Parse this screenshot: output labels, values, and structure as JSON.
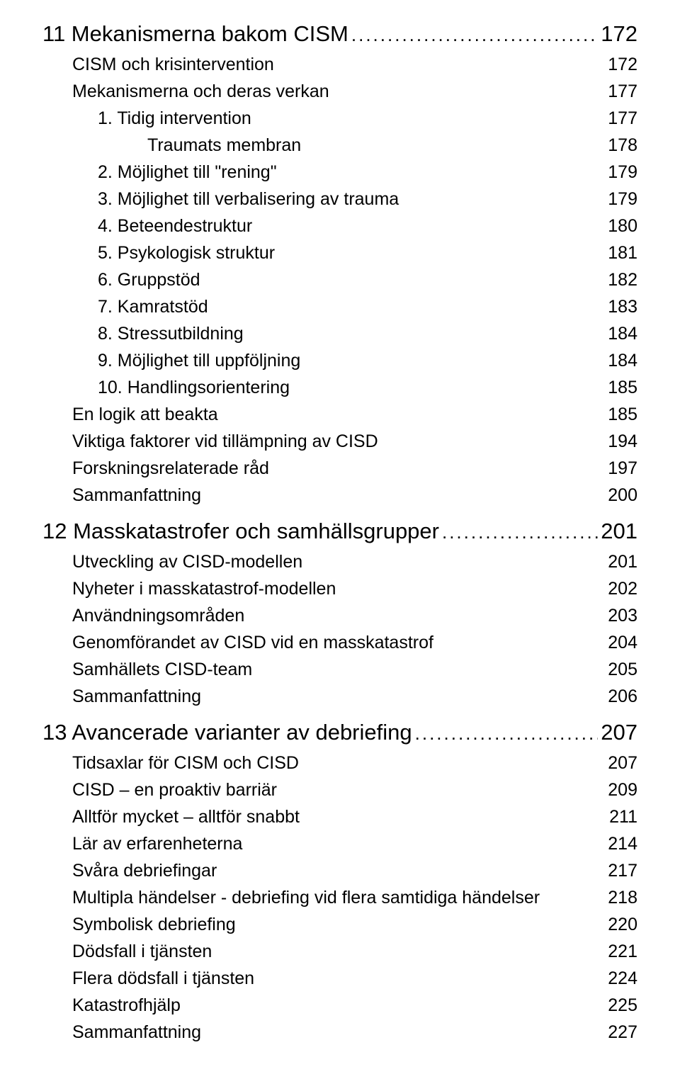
{
  "toc": [
    {
      "type": "chapter",
      "label": "11 Mekanismerna bakom CISM",
      "page": "172"
    },
    {
      "type": "entry",
      "indent": 1,
      "label": "CISM och krisintervention",
      "page": "172"
    },
    {
      "type": "entry",
      "indent": 1,
      "label": "Mekanismerna och deras verkan",
      "page": "177"
    },
    {
      "type": "entry",
      "indent": 2,
      "label": "1. Tidig intervention",
      "page": "177"
    },
    {
      "type": "entry",
      "indent": 3,
      "label": "Traumats membran",
      "page": "178"
    },
    {
      "type": "entry",
      "indent": 2,
      "label": "2. Möjlighet till \"rening\"",
      "page": "179"
    },
    {
      "type": "entry",
      "indent": 2,
      "label": "3. Möjlighet till verbalisering av trauma",
      "page": "179"
    },
    {
      "type": "entry",
      "indent": 2,
      "label": "4. Beteendestruktur",
      "page": "180"
    },
    {
      "type": "entry",
      "indent": 2,
      "label": "5. Psykologisk struktur",
      "page": "181"
    },
    {
      "type": "entry",
      "indent": 2,
      "label": "6. Gruppstöd",
      "page": "182"
    },
    {
      "type": "entry",
      "indent": 2,
      "label": "7. Kamratstöd",
      "page": "183"
    },
    {
      "type": "entry",
      "indent": 2,
      "label": "8. Stressutbildning",
      "page": "184"
    },
    {
      "type": "entry",
      "indent": 2,
      "label": "9. Möjlighet till uppföljning",
      "page": "184"
    },
    {
      "type": "entry",
      "indent": 2,
      "label": "10. Handlingsorientering",
      "page": "185"
    },
    {
      "type": "entry",
      "indent": 1,
      "label": "En logik att beakta",
      "page": "185"
    },
    {
      "type": "entry",
      "indent": 1,
      "label": "Viktiga faktorer vid tillämpning av CISD",
      "page": "194"
    },
    {
      "type": "entry",
      "indent": 1,
      "label": "Forskningsrelaterade råd",
      "page": "197"
    },
    {
      "type": "entry",
      "indent": 1,
      "label": "Sammanfattning",
      "page": "200"
    },
    {
      "type": "chapter",
      "label": "12 Masskatastrofer och samhällsgrupper",
      "page": "201"
    },
    {
      "type": "entry",
      "indent": 1,
      "label": "Utveckling av CISD-modellen",
      "page": "201"
    },
    {
      "type": "entry",
      "indent": 1,
      "label": "Nyheter i masskatastrof-modellen",
      "page": "202"
    },
    {
      "type": "entry",
      "indent": 1,
      "label": "Användningsområden",
      "page": "203"
    },
    {
      "type": "entry",
      "indent": 1,
      "label": "Genomförandet av CISD vid en masskatastrof",
      "page": "204"
    },
    {
      "type": "entry",
      "indent": 1,
      "label": "Samhällets CISD-team",
      "page": "205"
    },
    {
      "type": "entry",
      "indent": 1,
      "label": "Sammanfattning",
      "page": "206"
    },
    {
      "type": "chapter",
      "label": "13 Avancerade varianter av debriefing",
      "page": "207"
    },
    {
      "type": "entry",
      "indent": 1,
      "label": "Tidsaxlar för CISM och CISD",
      "page": "207"
    },
    {
      "type": "entry",
      "indent": 1,
      "label": "CISD – en proaktiv barriär",
      "page": "209"
    },
    {
      "type": "entry",
      "indent": 1,
      "label": "Alltför mycket – alltför snabbt",
      "page": "211"
    },
    {
      "type": "entry",
      "indent": 1,
      "label": "Lär av erfarenheterna",
      "page": "214"
    },
    {
      "type": "entry",
      "indent": 1,
      "label": "Svåra debriefingar",
      "page": "217"
    },
    {
      "type": "entry",
      "indent": 1,
      "label": "Multipla händelser - debriefing vid flera samtidiga händelser",
      "page": "218"
    },
    {
      "type": "entry",
      "indent": 1,
      "label": "Symbolisk debriefing",
      "page": "220"
    },
    {
      "type": "entry",
      "indent": 1,
      "label": "Dödsfall i tjänsten",
      "page": "221"
    },
    {
      "type": "entry",
      "indent": 1,
      "label": "Flera dödsfall i tjänsten",
      "page": "224"
    },
    {
      "type": "entry",
      "indent": 1,
      "label": "Katastrofhjälp",
      "page": "225"
    },
    {
      "type": "entry",
      "indent": 1,
      "label": "Sammanfattning",
      "page": "227"
    }
  ]
}
